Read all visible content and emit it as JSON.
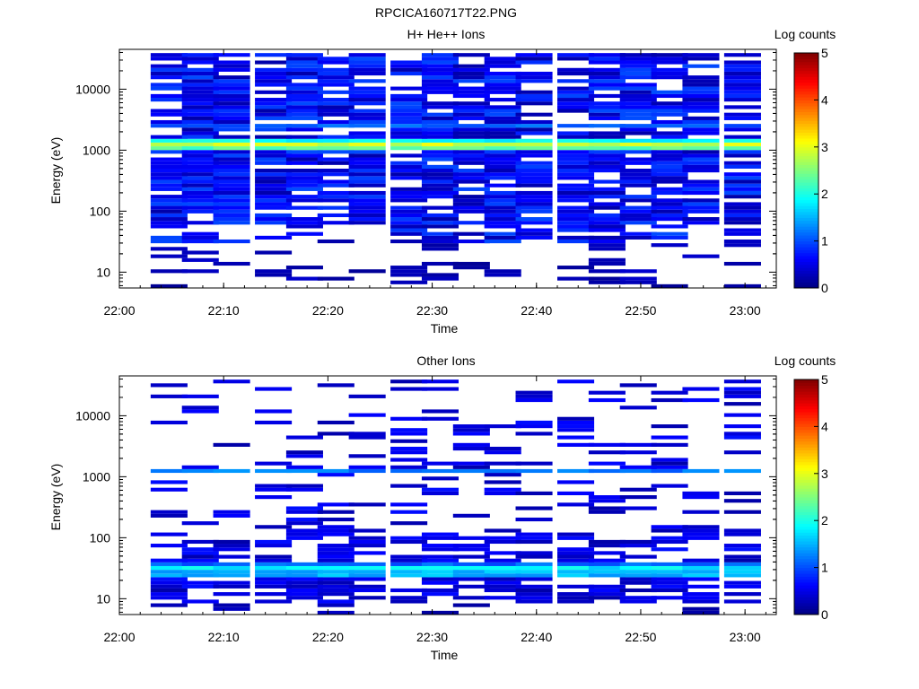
{
  "page_title": "RPCICA160717T22.PNG",
  "colormap": [
    "#00007f",
    "#0000ff",
    "#007fff",
    "#00ffff",
    "#7fff7f",
    "#ffff00",
    "#ff7f00",
    "#ff0000",
    "#7f0000"
  ],
  "chart_data": [
    {
      "type": "heatmap",
      "title": "H+ He++ Ions",
      "xlabel": "Time",
      "ylabel": "Energy (eV)",
      "x_tick_labels": [
        "22:00",
        "22:10",
        "22:20",
        "22:30",
        "22:40",
        "22:50",
        "23:00"
      ],
      "xlim": [
        "22:00",
        "23:03"
      ],
      "y_scale": "log",
      "y_tick_labels": [
        "10",
        "100",
        "1000",
        "10000"
      ],
      "ylim": [
        5.5,
        45000
      ],
      "colorbar_label": "Log counts",
      "colorbar_ticks": [
        "0",
        "1",
        "2",
        "3",
        "4",
        "5"
      ],
      "colorbar_range": [
        0,
        5
      ],
      "time_bins": [
        "22:03",
        "22:06",
        "22:09",
        "22:13",
        "22:16",
        "22:19",
        "22:22",
        "22:26",
        "22:29",
        "22:32",
        "22:35",
        "22:38",
        "22:42",
        "22:45",
        "22:48",
        "22:51",
        "22:54",
        "22:58"
      ],
      "features": [
        {
          "energy_eV": 1200,
          "log_counts": 2.9,
          "description": "persistent intense band"
        },
        {
          "energy_eV": 1050,
          "log_counts": 2.3
        },
        {
          "energy_eV": 1400,
          "log_counts": 1.9
        },
        {
          "energy_eV": 2500,
          "log_counts": 1.1
        },
        {
          "energy_eV_range": [
            30,
            40000
          ],
          "log_counts_range": [
            0.2,
            1.0
          ],
          "description": "scattered background"
        }
      ]
    },
    {
      "type": "heatmap",
      "title": "Other Ions",
      "xlabel": "Time",
      "ylabel": "Energy (eV)",
      "x_tick_labels": [
        "22:00",
        "22:10",
        "22:20",
        "22:30",
        "22:40",
        "22:50",
        "23:00"
      ],
      "xlim": [
        "22:00",
        "23:03"
      ],
      "y_scale": "log",
      "y_tick_labels": [
        "10",
        "100",
        "1000",
        "10000"
      ],
      "ylim": [
        5.5,
        45000
      ],
      "colorbar_label": "Log counts",
      "colorbar_ticks": [
        "0",
        "1",
        "2",
        "3",
        "4",
        "5"
      ],
      "colorbar_range": [
        0,
        5
      ],
      "time_bins": [
        "22:03",
        "22:06",
        "22:09",
        "22:13",
        "22:16",
        "22:19",
        "22:22",
        "22:26",
        "22:29",
        "22:32",
        "22:35",
        "22:38",
        "22:42",
        "22:45",
        "22:48",
        "22:51",
        "22:54",
        "22:58"
      ],
      "features": [
        {
          "energy_eV": 1200,
          "log_counts": 1.2,
          "description": "persistent band"
        },
        {
          "energy_eV": 32,
          "log_counts": 1.8,
          "description": "low energy band"
        },
        {
          "energy_eV": 26,
          "log_counts": 1.5
        },
        {
          "energy_eV": 38,
          "log_counts": 1.1
        },
        {
          "energy_eV_range": [
            8,
            40000
          ],
          "log_counts_range": [
            0.2,
            0.7
          ],
          "description": "sparse background"
        }
      ]
    }
  ]
}
